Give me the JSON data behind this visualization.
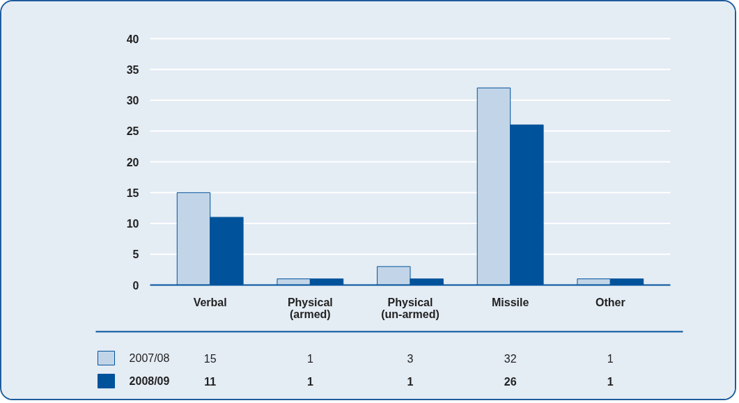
{
  "chart_data": {
    "type": "bar",
    "categories": [
      "Verbal",
      "Physical (armed)",
      "Physical (un-armed)",
      "Missile",
      "Other"
    ],
    "series": [
      {
        "name": "2007/08",
        "color": "#c2d5e8",
        "values": [
          15,
          1,
          3,
          32,
          1
        ]
      },
      {
        "name": "2008/09",
        "color": "#00529b",
        "values": [
          11,
          1,
          1,
          26,
          1
        ]
      }
    ],
    "ylim": [
      0,
      40
    ],
    "yticks": [
      0,
      5,
      10,
      15,
      20,
      25,
      30,
      35,
      40
    ],
    "grid": "y",
    "legend": "bottom",
    "data_labels": true
  }
}
